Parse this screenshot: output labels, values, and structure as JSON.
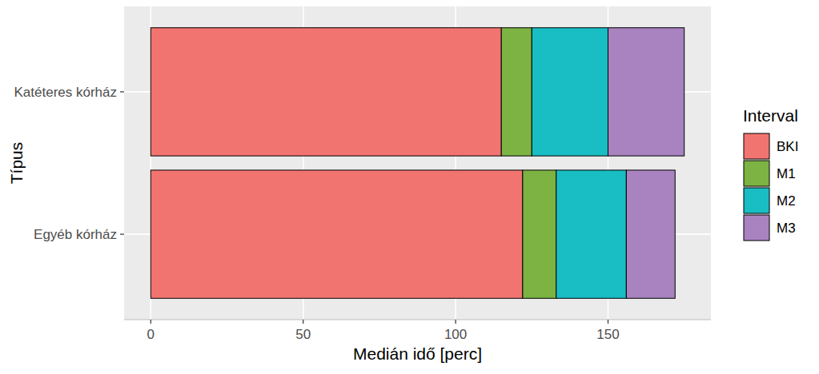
{
  "chart_data": {
    "type": "bar",
    "orientation": "horizontal",
    "stacked": true,
    "x_label": "Medián idő [perc]",
    "y_label": "Típus",
    "legend_title": "Interval",
    "categories": [
      "Katéteres kórház",
      "Egyéb kórház"
    ],
    "series": [
      {
        "name": "BKI",
        "color": "#f27470",
        "values": [
          115,
          122
        ]
      },
      {
        "name": "M1",
        "color": "#7cb342",
        "values": [
          10,
          11
        ]
      },
      {
        "name": "M2",
        "color": "#19bdc4",
        "values": [
          25,
          23
        ]
      },
      {
        "name": "M3",
        "color": "#a883bf",
        "values": [
          25,
          16
        ]
      }
    ],
    "xlim": [
      -8.75,
      183.75
    ],
    "xticks": [
      0,
      50,
      100,
      150
    ],
    "grid": true,
    "legend": "right"
  }
}
